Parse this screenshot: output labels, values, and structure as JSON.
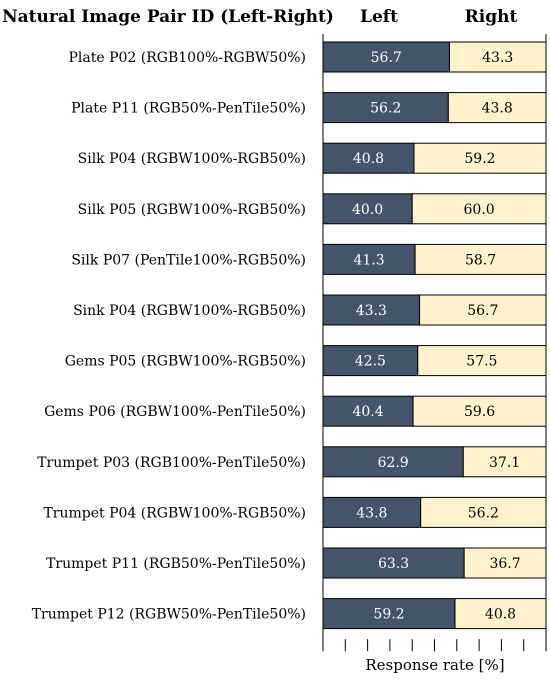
{
  "chart_data": {
    "type": "bar",
    "stacked": true,
    "orientation": "horizontal",
    "header": "Natural Image Pair ID (Left-Right)",
    "xlabel": "Response rate [%]",
    "xlim": [
      0,
      100
    ],
    "categories": [
      "Plate P02 (RGB100%-RGBW50%)",
      "Plate P11 (RGB50%-PenTile50%)",
      "Silk P04 (RGBW100%-RGB50%)",
      "Silk P05 (RGBW100%-RGB50%)",
      "Silk P07 (PenTile100%-RGB50%)",
      "Sink P04 (RGBW100%-RGB50%)",
      "Gems P05 (RGBW100%-RGB50%)",
      "Gems P06 (RGBW100%-PenTile50%)",
      "Trumpet P03 (RGB100%-PenTile50%)",
      "Trumpet P04 (RGBW100%-RGB50%)",
      "Trumpet P11 (RGB50%-PenTile50%)",
      "Trumpet P12 (RGBW50%-PenTile50%)"
    ],
    "series": [
      {
        "name": "Left",
        "color": "#44546a",
        "label_color": "#ffffff",
        "values": [
          56.7,
          56.2,
          40.8,
          40.0,
          41.3,
          43.3,
          42.5,
          40.4,
          62.9,
          43.8,
          63.3,
          59.2
        ],
        "labels": [
          "56.7",
          "56.2",
          "40.8",
          "40.0",
          "41.3",
          "43.3",
          "42.5",
          "40.4",
          "62.9",
          "43.8",
          "63.3",
          "59.2"
        ]
      },
      {
        "name": "Right",
        "color": "#fff2cc",
        "label_color": "#000000",
        "values": [
          43.3,
          43.8,
          59.2,
          60.0,
          58.7,
          56.7,
          57.5,
          59.6,
          37.1,
          56.2,
          36.7,
          40.8
        ],
        "labels": [
          "43.3",
          "43.8",
          "59.2",
          "60.0",
          "58.7",
          "56.7",
          "57.5",
          "59.6",
          "37.1",
          "56.2",
          "36.7",
          "40.8"
        ]
      }
    ]
  }
}
